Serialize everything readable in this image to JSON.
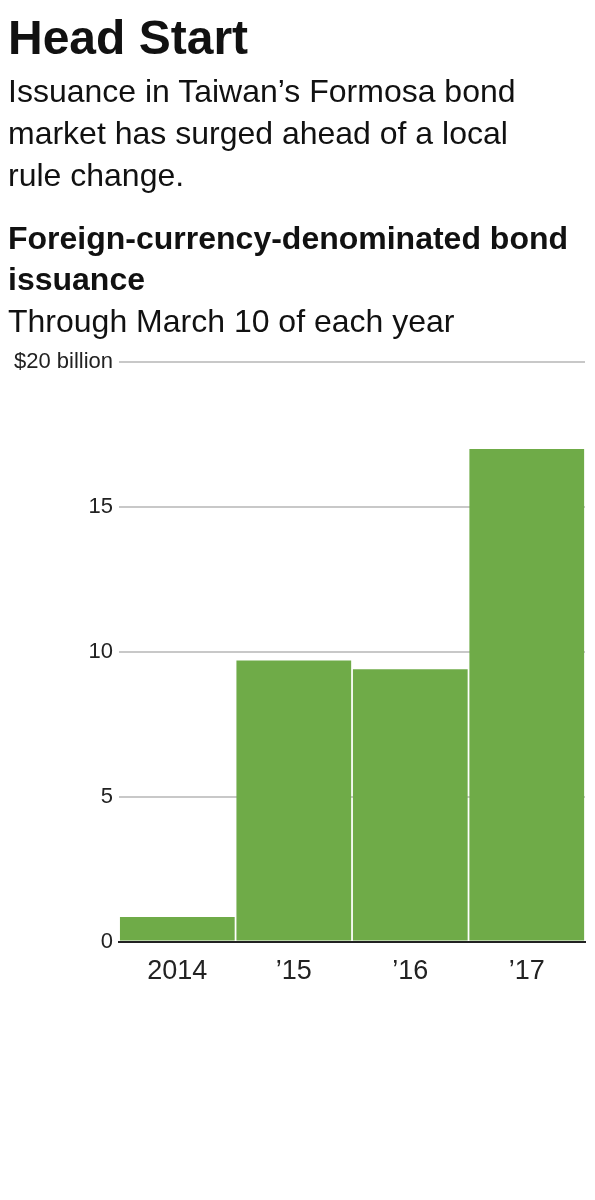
{
  "chart_data": {
    "type": "bar",
    "title": "Head Start",
    "subtitle": "Issuance in Taiwan’s Formosa bond market has surged ahead of a local rule change.",
    "annotations": [
      "Foreign-currency-denominated bond issuance",
      "Through March 10 of each year"
    ],
    "categories": [
      "2014",
      "’15",
      "’16",
      "’17"
    ],
    "values": [
      0.85,
      9.7,
      9.4,
      17.0
    ],
    "color": "#6fab48",
    "ylim": [
      0,
      20
    ],
    "yticks": [
      0,
      5,
      10,
      15,
      {
        "value": 20,
        "label": "$20 billion"
      }
    ],
    "grid": "y"
  }
}
